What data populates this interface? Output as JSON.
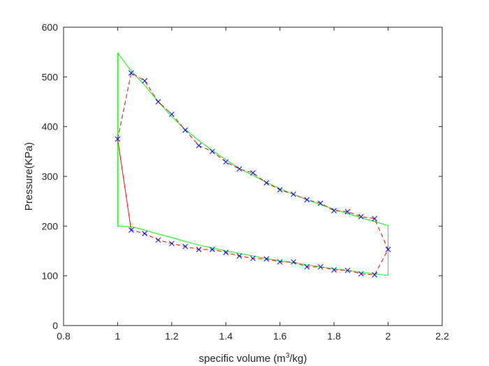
{
  "chart_data": {
    "type": "line",
    "xlabel": {
      "text": "specific volume (m",
      "sup": "3",
      "tail": "/kg)"
    },
    "ylabel": "Pressure(KPa)",
    "xlim": [
      0.8,
      2.2
    ],
    "ylim": [
      0,
      600
    ],
    "xticks": [
      "0.8",
      "1",
      "1.2",
      "1.4",
      "1.6",
      "1.8",
      "2",
      "2.2"
    ],
    "yticks": [
      "0",
      "100",
      "200",
      "300",
      "400",
      "500",
      "600"
    ],
    "grid": false,
    "colors": {
      "cycle": "#00ff00",
      "fit": "#ff0000",
      "measured": "#0000ff",
      "axes": "#262626"
    },
    "series": [
      {
        "style": "solid",
        "color": "#00ff00",
        "points": [
          [
            1.0,
            200
          ],
          [
            1.0,
            548
          ],
          [
            1.05,
            512
          ],
          [
            1.1,
            483
          ],
          [
            1.15,
            450
          ],
          [
            1.2,
            420
          ],
          [
            1.25,
            394
          ],
          [
            1.3,
            372
          ],
          [
            1.35,
            352
          ],
          [
            1.4,
            333
          ],
          [
            1.45,
            316
          ],
          [
            1.5,
            302
          ],
          [
            1.55,
            288
          ],
          [
            1.6,
            275
          ],
          [
            1.65,
            264
          ],
          [
            1.7,
            253
          ],
          [
            1.75,
            243
          ],
          [
            1.8,
            234
          ],
          [
            1.85,
            225
          ],
          [
            1.9,
            217
          ],
          [
            1.95,
            209
          ],
          [
            2.0,
            201
          ],
          [
            2.0,
            101
          ],
          [
            1.95,
            104
          ],
          [
            1.9,
            107
          ],
          [
            1.85,
            111
          ],
          [
            1.8,
            114
          ],
          [
            1.75,
            118
          ],
          [
            1.7,
            122
          ],
          [
            1.65,
            126
          ],
          [
            1.6,
            130
          ],
          [
            1.55,
            135
          ],
          [
            1.5,
            140
          ],
          [
            1.45,
            145
          ],
          [
            1.4,
            150
          ],
          [
            1.35,
            156
          ],
          [
            1.3,
            162
          ],
          [
            1.25,
            169
          ],
          [
            1.2,
            177
          ],
          [
            1.15,
            184
          ],
          [
            1.1,
            192
          ],
          [
            1.05,
            199
          ],
          [
            1.0,
            200
          ]
        ]
      },
      {
        "style": "dashed",
        "color": "#ff0000",
        "points": [
          [
            1.0,
            375
          ],
          [
            1.05,
            508
          ],
          [
            1.1,
            492
          ],
          [
            1.15,
            450
          ],
          [
            1.2,
            425
          ],
          [
            1.25,
            393
          ],
          [
            1.3,
            362
          ],
          [
            1.35,
            350
          ],
          [
            1.4,
            329
          ],
          [
            1.45,
            315
          ],
          [
            1.5,
            307
          ],
          [
            1.55,
            287
          ],
          [
            1.6,
            273
          ],
          [
            1.65,
            264
          ],
          [
            1.7,
            253
          ],
          [
            1.75,
            246
          ],
          [
            1.8,
            231
          ],
          [
            1.85,
            229
          ],
          [
            1.9,
            219
          ],
          [
            1.95,
            215
          ],
          [
            2.0,
            153
          ],
          [
            1.95,
            102
          ],
          [
            1.9,
            104
          ],
          [
            1.85,
            111
          ],
          [
            1.8,
            112
          ],
          [
            1.75,
            118
          ],
          [
            1.7,
            118
          ],
          [
            1.65,
            128
          ],
          [
            1.6,
            128
          ],
          [
            1.55,
            134
          ],
          [
            1.5,
            135
          ],
          [
            1.45,
            140
          ],
          [
            1.4,
            147
          ],
          [
            1.35,
            153
          ],
          [
            1.3,
            153
          ],
          [
            1.25,
            159
          ],
          [
            1.2,
            165
          ],
          [
            1.15,
            172
          ],
          [
            1.1,
            185
          ],
          [
            1.05,
            192
          ]
        ]
      },
      {
        "style": "solid",
        "color": "#ff0000",
        "points": [
          [
            1.05,
            192
          ],
          [
            1.0,
            375
          ]
        ]
      },
      {
        "style": "markers",
        "marker": "x",
        "color": "#0000ff",
        "points": [
          [
            1.0,
            375
          ],
          [
            1.05,
            508
          ],
          [
            1.1,
            492
          ],
          [
            1.15,
            450
          ],
          [
            1.2,
            425
          ],
          [
            1.25,
            393
          ],
          [
            1.3,
            362
          ],
          [
            1.35,
            350
          ],
          [
            1.4,
            329
          ],
          [
            1.45,
            315
          ],
          [
            1.5,
            307
          ],
          [
            1.55,
            287
          ],
          [
            1.6,
            273
          ],
          [
            1.65,
            264
          ],
          [
            1.7,
            253
          ],
          [
            1.75,
            246
          ],
          [
            1.8,
            231
          ],
          [
            1.85,
            229
          ],
          [
            1.9,
            219
          ],
          [
            1.95,
            215
          ],
          [
            2.0,
            153
          ],
          [
            1.95,
            102
          ],
          [
            1.9,
            104
          ],
          [
            1.85,
            111
          ],
          [
            1.8,
            112
          ],
          [
            1.75,
            118
          ],
          [
            1.7,
            118
          ],
          [
            1.65,
            128
          ],
          [
            1.6,
            128
          ],
          [
            1.55,
            134
          ],
          [
            1.5,
            135
          ],
          [
            1.45,
            140
          ],
          [
            1.4,
            147
          ],
          [
            1.35,
            153
          ],
          [
            1.3,
            153
          ],
          [
            1.25,
            159
          ],
          [
            1.2,
            165
          ],
          [
            1.15,
            172
          ],
          [
            1.1,
            185
          ],
          [
            1.05,
            192
          ]
        ]
      }
    ]
  }
}
